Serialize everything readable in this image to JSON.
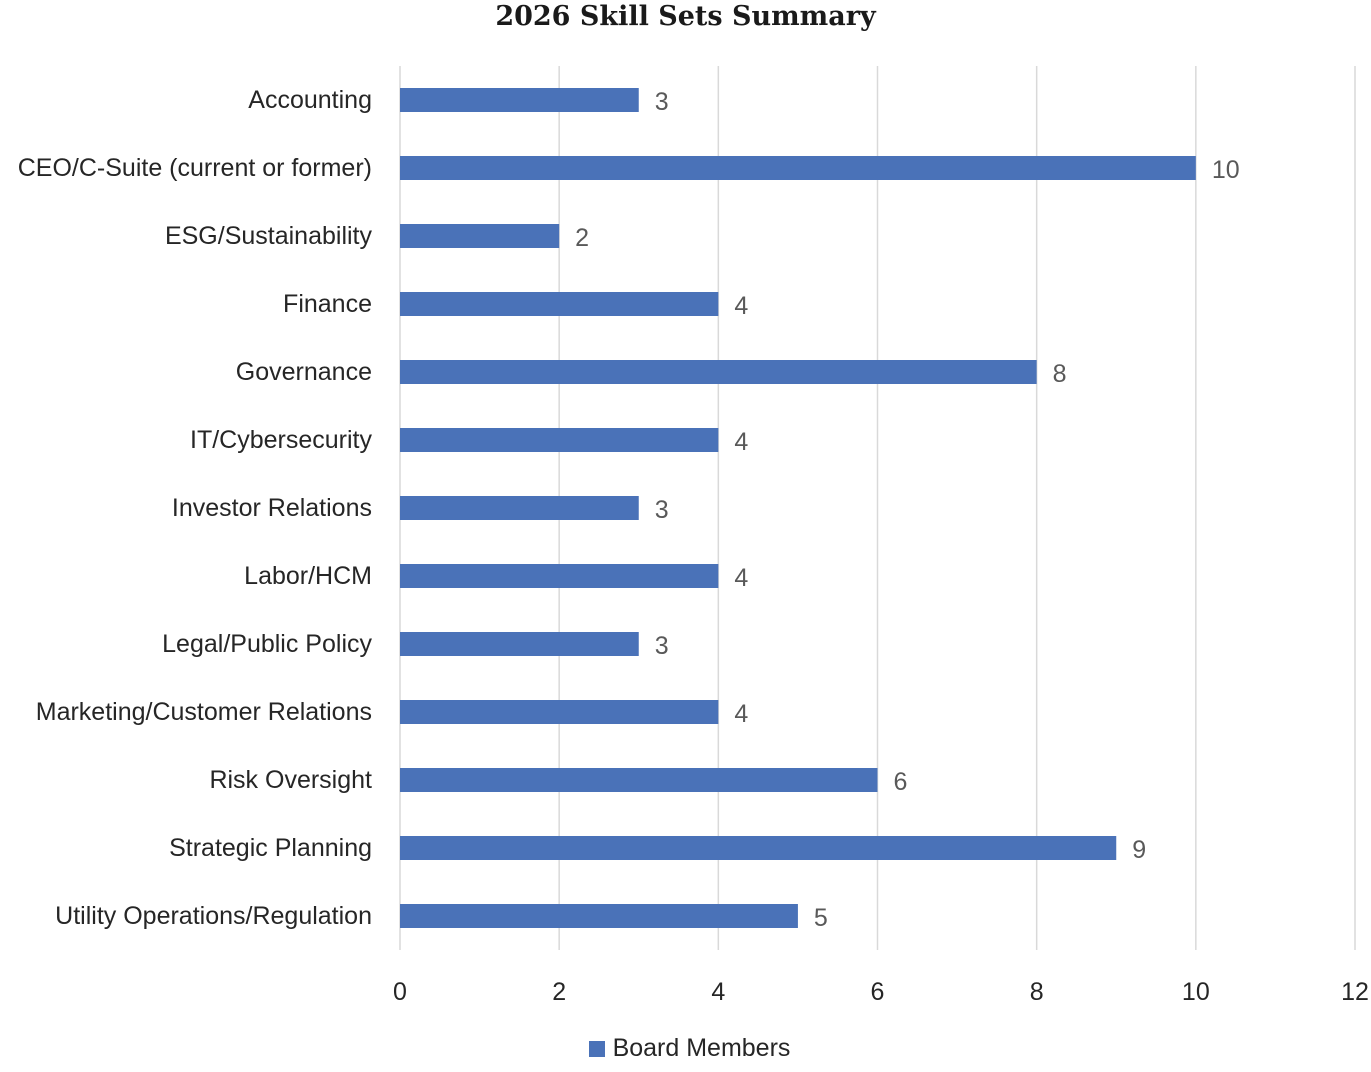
{
  "chart_data": {
    "type": "bar",
    "orientation": "horizontal",
    "title": "2026 Skill Sets Summary",
    "xlabel": "",
    "ylabel": "",
    "categories": [
      "Accounting",
      "CEO/C-Suite (current or former)",
      "ESG/Sustainability",
      "Finance",
      "Governance",
      "IT/Cybersecurity",
      "Investor Relations",
      "Labor/HCM",
      "Legal/Public Policy",
      "Marketing/Customer Relations",
      "Risk Oversight",
      "Strategic Planning",
      "Utility Operations/Regulation"
    ],
    "series": [
      {
        "name": "Board Members",
        "color": "#4a72b8",
        "values": [
          3,
          10,
          2,
          4,
          8,
          4,
          3,
          4,
          3,
          4,
          6,
          9,
          5
        ]
      }
    ],
    "xlim": [
      0,
      12
    ],
    "x_ticks": [
      0,
      2,
      4,
      6,
      8,
      10,
      12
    ],
    "grid": "vertical",
    "legend_position": "bottom",
    "data_labels": true
  }
}
